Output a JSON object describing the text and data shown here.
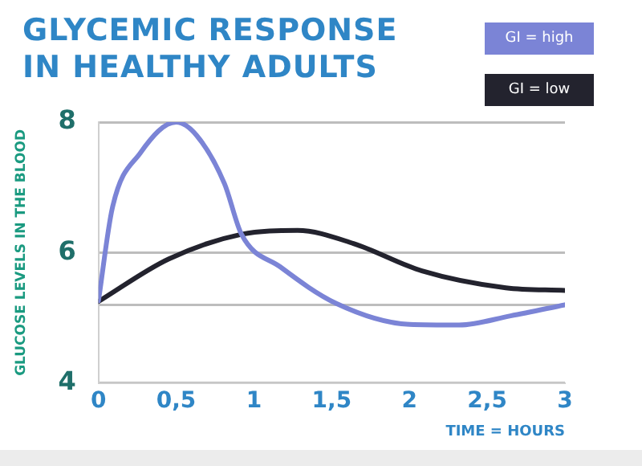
{
  "chart_data": {
    "type": "line",
    "title": "GLYCEMIC RESPONSE\nIN HEALTHY ADULTS",
    "xlabel": "TIME = HOURS",
    "ylabel": "GLUCOSE LEVELS IN THE BLOOD",
    "series": [
      {
        "name": "GI = high",
        "color": "#7b84d6",
        "x": [
          0,
          0.09,
          0.27,
          0.5,
          0.63,
          0.81,
          0.92,
          1.17,
          1.53,
          2.0,
          2.32,
          2.65,
          3.0
        ],
        "values": [
          5.26,
          6.69,
          7.53,
          8.0,
          7.8,
          7.06,
          6.28,
          5.78,
          5.22,
          4.9,
          4.89,
          5.03,
          5.2
        ]
      },
      {
        "name": "GI = low",
        "color": "#23232e",
        "x": [
          0,
          0.45,
          0.92,
          1.28,
          1.64,
          2.08,
          2.62,
          3.0
        ],
        "values": [
          5.25,
          5.9,
          6.28,
          6.34,
          6.14,
          5.72,
          5.46,
          5.42
        ]
      }
    ],
    "xlim": [
      0,
      3
    ],
    "xticks": [
      0,
      {
        "value": 0.5,
        "label": "0,5"
      },
      1,
      {
        "value": 1.5,
        "label": "1,5"
      },
      2,
      {
        "value": 2.5,
        "label": "2,5"
      },
      3
    ],
    "ylim": [
      4,
      8
    ],
    "yticks": [
      4,
      {
        "value": 5.2,
        "label": null
      },
      6,
      8
    ],
    "grid": "y",
    "legend": "top right",
    "marker": "none",
    "line_style": "solid"
  }
}
